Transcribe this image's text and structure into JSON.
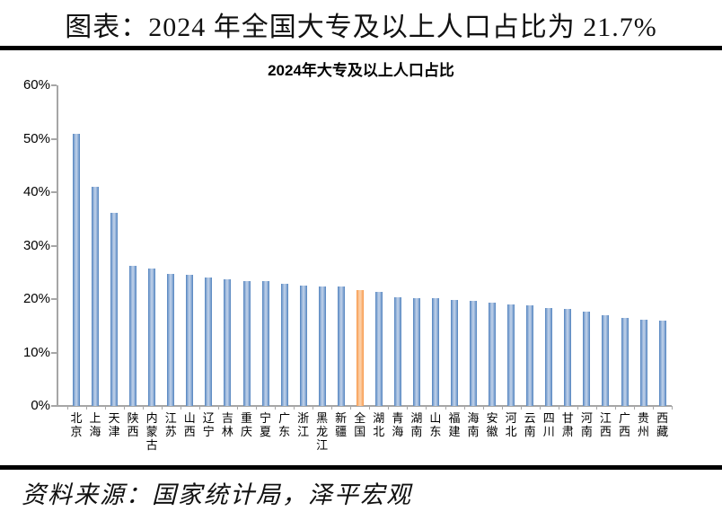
{
  "header": {
    "title": "图表：2024 年全国大专及以上人口占比为 21.7%"
  },
  "chart_data": {
    "type": "bar",
    "title": "2024年大专及以上人口占比",
    "categories": [
      "北京",
      "上海",
      "天津",
      "陕西",
      "内蒙古",
      "江苏",
      "山西",
      "辽宁",
      "吉林",
      "重庆",
      "宁夏",
      "广东",
      "浙江",
      "黑龙江",
      "新疆",
      "全国",
      "湖北",
      "青海",
      "湖南",
      "山东",
      "福建",
      "海南",
      "安徽",
      "河北",
      "云南",
      "四川",
      "甘肃",
      "河南",
      "江西",
      "广西",
      "贵州",
      "西藏"
    ],
    "values": [
      51.0,
      41.0,
      36.2,
      26.2,
      25.7,
      24.7,
      24.5,
      24.1,
      23.7,
      23.4,
      23.3,
      22.9,
      22.5,
      22.4,
      22.3,
      21.7,
      21.3,
      20.4,
      20.2,
      20.1,
      19.8,
      19.7,
      19.4,
      19.0,
      18.9,
      18.4,
      18.1,
      17.6,
      16.9,
      16.5,
      16.1,
      15.9
    ],
    "unit": "%",
    "highlight_category": "全国",
    "ylim": [
      0,
      60
    ],
    "yticks": [
      "0%",
      "10%",
      "20%",
      "30%",
      "40%",
      "50%",
      "60%"
    ],
    "grid": false,
    "legend_position": "none",
    "colors": {
      "bar": "#4F81BD",
      "bar_light": "#C3D4EA",
      "bar_mid": "#7FA3D1",
      "highlight": "#F79646",
      "highlight_light": "#FDD5B0",
      "highlight_mid": "#F9B275",
      "axis": "#A6A6A6"
    }
  },
  "footer": {
    "source": "资料来源：国家统计局，泽平宏观"
  }
}
